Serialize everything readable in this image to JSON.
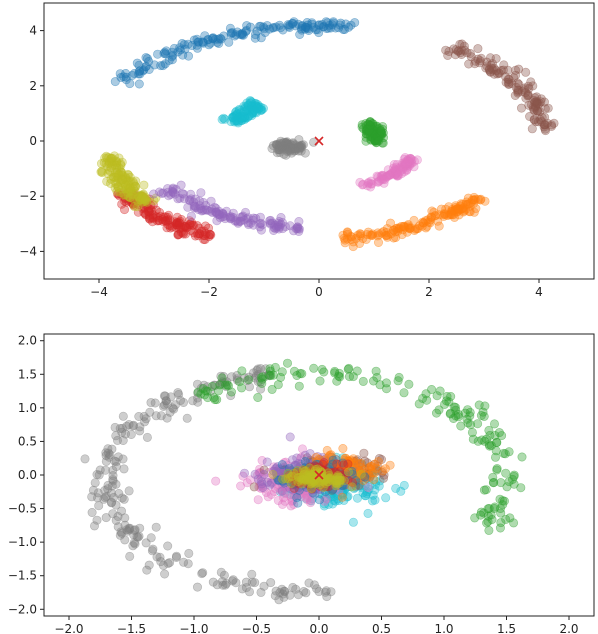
{
  "chart_data": [
    {
      "type": "scatter",
      "title": "",
      "xlabel": "",
      "ylabel": "",
      "xlim": [
        -5,
        5
      ],
      "ylim": [
        -5,
        5
      ],
      "x_ticks": [
        -4,
        -2,
        0,
        2,
        4
      ],
      "y_ticks": [
        -4,
        -2,
        0,
        2,
        4
      ],
      "grid": false,
      "marker": {
        "x": 0,
        "y": 0,
        "symbol": "x",
        "color": "#d62728"
      },
      "series": [
        {
          "color": "#1f77b4",
          "shape": "arc",
          "cx": 0,
          "cy": 0,
          "r": 4.15,
          "deg_from": 81,
          "deg_to": 150,
          "noise": 0.12,
          "count": 160
        },
        {
          "color": "#8c564b",
          "shape": "arc",
          "cx": 0,
          "cy": 0,
          "r": 4.15,
          "deg_from": 5,
          "deg_to": 55,
          "noise": 0.12,
          "count": 130
        },
        {
          "color": "#ff7f0e",
          "shape": "arc",
          "cx": 0,
          "cy": 0,
          "r": 3.55,
          "deg_from": -83,
          "deg_to": -35,
          "noise": 0.12,
          "count": 150
        },
        {
          "color": "#d62728",
          "shape": "arc",
          "cx": 0,
          "cy": 0,
          "r": 4.0,
          "deg_from": -153,
          "deg_to": -120,
          "noise": 0.12,
          "count": 150
        },
        {
          "color": "#bcbd22",
          "shape": "arc",
          "cx": 0,
          "cy": 0,
          "r": 3.85,
          "deg_from": -172,
          "deg_to": -144,
          "noise": 0.12,
          "count": 140
        },
        {
          "color": "#9467bd",
          "shape": "arc",
          "cx": 0,
          "cy": 0,
          "r": 3.2,
          "deg_from": -148,
          "deg_to": -96,
          "noise": 0.12,
          "count": 130
        },
        {
          "color": "#17becf",
          "shape": "arc",
          "cx": 0,
          "cy": 0,
          "r": 1.7,
          "deg_from": 130,
          "deg_to": 157,
          "noise": 0.1,
          "count": 90
        },
        {
          "color": "#2ca02c",
          "shape": "arc",
          "cx": 0,
          "cy": 0,
          "r": 1.05,
          "deg_from": -4,
          "deg_to": 38,
          "noise": 0.1,
          "count": 90
        },
        {
          "color": "#e377c2",
          "shape": "arc",
          "cx": 0,
          "cy": 0,
          "r": 1.8,
          "deg_from": -64,
          "deg_to": -20,
          "noise": 0.08,
          "count": 90
        },
        {
          "color": "#7f7f7f",
          "shape": "blob",
          "cx": -0.55,
          "cy": -0.2,
          "sx": 0.16,
          "sy": 0.12,
          "count": 80
        }
      ]
    },
    {
      "type": "scatter",
      "title": "",
      "xlabel": "",
      "ylabel": "",
      "xlim": [
        -2.2,
        2.2
      ],
      "ylim": [
        -2.1,
        2.1
      ],
      "x_ticks": [
        "-2.0",
        "-1.5",
        "-1.0",
        "-0.5",
        "0.0",
        "0.5",
        "1.0",
        "1.5",
        "2.0"
      ],
      "y_ticks": [
        "-2.0",
        "-1.5",
        "-1.0",
        "-0.5",
        "0.0",
        "0.5",
        "1.0",
        "1.5",
        "2.0"
      ],
      "grid": false,
      "marker": {
        "x": 0,
        "y": 0,
        "symbol": "x",
        "color": "#d62728"
      },
      "series": [
        {
          "color": "#7f7f7f",
          "shape": "arc",
          "cx": -0.02,
          "cy": -0.1,
          "rx": 1.7,
          "ry": 1.65,
          "deg_from": 103,
          "deg_to": 275,
          "noise": 0.09,
          "count": 230
        },
        {
          "color": "#2ca02c",
          "shape": "arc",
          "cx": 0.0,
          "cy": -0.05,
          "rx": 1.5,
          "ry": 1.55,
          "deg_from": -30,
          "deg_to": 128,
          "noise": 0.08,
          "count": 170
        },
        {
          "color": "#17becf",
          "shape": "blob",
          "cx": 0.2,
          "cy": -0.15,
          "sx": 0.22,
          "sy": 0.18,
          "count": 160
        },
        {
          "color": "#e377c2",
          "shape": "blob",
          "cx": -0.2,
          "cy": -0.1,
          "sx": 0.2,
          "sy": 0.17,
          "count": 150
        },
        {
          "color": "#8c564b",
          "shape": "blob",
          "cx": 0.1,
          "cy": 0.02,
          "sx": 0.2,
          "sy": 0.13,
          "count": 110
        },
        {
          "color": "#9467bd",
          "shape": "blob",
          "cx": -0.15,
          "cy": 0.0,
          "sx": 0.18,
          "sy": 0.14,
          "count": 110
        },
        {
          "color": "#ff7f0e",
          "shape": "blob",
          "cx": 0.2,
          "cy": 0.1,
          "sx": 0.16,
          "sy": 0.11,
          "count": 100
        },
        {
          "color": "#1f77b4",
          "shape": "blob",
          "cx": 0.0,
          "cy": -0.05,
          "sx": 0.16,
          "sy": 0.11,
          "count": 90
        },
        {
          "color": "#d62728",
          "shape": "blob",
          "cx": 0.0,
          "cy": 0.0,
          "sx": 0.13,
          "sy": 0.09,
          "count": 80
        },
        {
          "color": "#bcbd22",
          "shape": "blob",
          "cx": 0.0,
          "cy": -0.05,
          "sx": 0.13,
          "sy": 0.07,
          "count": 110
        }
      ]
    }
  ]
}
